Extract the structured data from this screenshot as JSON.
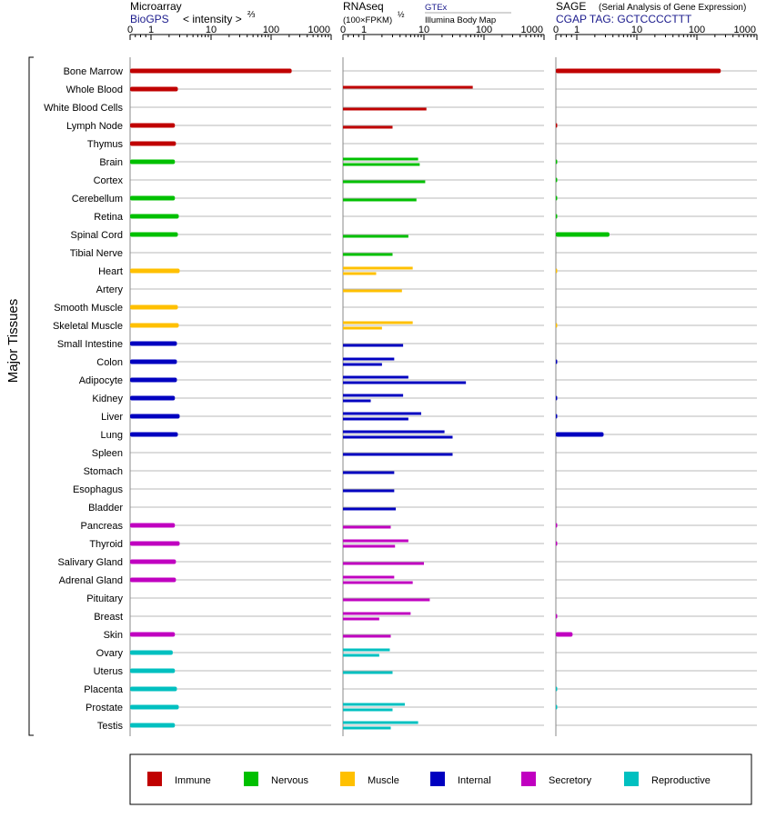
{
  "chart_data": {
    "type": "bar",
    "orientation": "horizontal",
    "ylabel": "Major Tissues",
    "x_ticks": [
      "0",
      "1",
      "10",
      "100",
      "1000"
    ],
    "x_tick_values": [
      0,
      1,
      10,
      100,
      1000
    ],
    "xlim": [
      0,
      1000
    ],
    "categories": [
      "Bone Marrow",
      "Whole Blood",
      "White Blood Cells",
      "Lymph Node",
      "Thymus",
      "Brain",
      "Cortex",
      "Cerebellum",
      "Retina",
      "Spinal Cord",
      "Tibial Nerve",
      "Heart",
      "Artery",
      "Smooth Muscle",
      "Skeletal Muscle",
      "Small Intestine",
      "Colon",
      "Adipocyte",
      "Kidney",
      "Liver",
      "Lung",
      "Spleen",
      "Stomach",
      "Esophagus",
      "Bladder",
      "Pancreas",
      "Thyroid",
      "Salivary Gland",
      "Adrenal Gland",
      "Pituitary",
      "Breast",
      "Skin",
      "Ovary",
      "Uterus",
      "Placenta",
      "Prostate",
      "Testis"
    ],
    "category_groups": [
      "Immune",
      "Immune",
      "Immune",
      "Immune",
      "Immune",
      "Nervous",
      "Nervous",
      "Nervous",
      "Nervous",
      "Nervous",
      "Nervous",
      "Muscle",
      "Muscle",
      "Muscle",
      "Muscle",
      "Internal",
      "Internal",
      "Internal",
      "Internal",
      "Internal",
      "Internal",
      "Internal",
      "Internal",
      "Internal",
      "Internal",
      "Secretory",
      "Secretory",
      "Secretory",
      "Secretory",
      "Secretory",
      "Secretory",
      "Secretory",
      "Reproductive",
      "Reproductive",
      "Reproductive",
      "Reproductive",
      "Reproductive"
    ],
    "legend": {
      "placement": "bottom",
      "entries": [
        {
          "name": "Immune",
          "color": "#c00000"
        },
        {
          "name": "Nervous",
          "color": "#00c000"
        },
        {
          "name": "Muscle",
          "color": "#ffc000"
        },
        {
          "name": "Internal",
          "color": "#0000c0"
        },
        {
          "name": "Secretory",
          "color": "#c000c0"
        },
        {
          "name": "Reproductive",
          "color": "#00c0c0"
        }
      ]
    },
    "panels": [
      {
        "id": "microarray",
        "title": "Microarray",
        "source": "BioGPS",
        "unit": "< intensity >",
        "unit_exponent": "⅔",
        "values": [
          [
            220
          ],
          [
            2.8
          ],
          [],
          [
            2.5
          ],
          [
            2.6
          ],
          [
            2.5
          ],
          [],
          [
            2.5
          ],
          [
            2.9
          ],
          [
            2.8
          ],
          [],
          [
            3.0
          ],
          [],
          [
            2.8
          ],
          [
            2.9
          ],
          [
            2.7
          ],
          [
            2.7
          ],
          [
            2.7
          ],
          [
            2.5
          ],
          [
            3.0
          ],
          [
            2.8
          ],
          [],
          [],
          [],
          [],
          [
            2.5
          ],
          [
            3.0
          ],
          [
            2.6
          ],
          [
            2.6
          ],
          [],
          [],
          [
            2.5
          ],
          [
            2.3
          ],
          [
            2.5
          ],
          [
            2.7
          ],
          [
            2.9
          ],
          [
            2.5
          ]
        ]
      },
      {
        "id": "rnaseq",
        "title": "RNAseq",
        "unit": "(100×FPKM)",
        "unit_exponent": "½",
        "source_top": "GTEx",
        "source_bottom": "Illumina Body Map",
        "values": [
          [],
          [
            65
          ],
          [
            11
          ],
          [
            3.0
          ],
          [],
          [
            8.0,
            8.5
          ],
          [
            10.5
          ],
          [
            7.5
          ],
          [],
          [
            5.5
          ],
          [
            3.0
          ],
          [
            6.5,
            1.6
          ],
          [
            4.3
          ],
          [],
          [
            6.5,
            2.0
          ],
          [
            4.5
          ],
          [
            3.2,
            2.0
          ],
          [
            5.5,
            50
          ],
          [
            4.5,
            1.3
          ],
          [
            9.0,
            5.5
          ],
          [
            22,
            30
          ],
          [
            30
          ],
          [
            3.2
          ],
          [
            3.2
          ],
          [
            3.4
          ],
          [
            2.8
          ],
          [
            5.5,
            3.3
          ],
          [
            10
          ],
          [
            3.2,
            6.5
          ],
          [
            12.5
          ],
          [
            6.0,
            1.8
          ],
          [
            2.8
          ],
          [
            2.7,
            1.8
          ],
          [
            3.0
          ],
          [],
          [
            4.8,
            3.0
          ],
          [
            8.0,
            2.8
          ]
        ]
      },
      {
        "id": "sage",
        "title": "SAGE",
        "subtitle": "(Serial Analysis of Gene Expression)",
        "source": "CGAP TAG: GCTCCCCTTT",
        "values": [
          [
            250
          ],
          [],
          [],
          [
            0.05
          ],
          [],
          [
            0.05
          ],
          [
            0.05
          ],
          [
            0.05
          ],
          [
            0.05
          ],
          [
            3.5
          ],
          [],
          [
            0.05
          ],
          [],
          [],
          [
            0.05
          ],
          [],
          [
            0.05
          ],
          [],
          [
            0.05
          ],
          [
            0.05
          ],
          [
            2.8
          ],
          [],
          [],
          [],
          [],
          [
            0.05
          ],
          [
            0.05
          ],
          [],
          [],
          [],
          [
            0.05
          ],
          [
            0.8
          ],
          [],
          [],
          [
            0.05
          ],
          [
            0.05
          ],
          []
        ]
      }
    ]
  }
}
